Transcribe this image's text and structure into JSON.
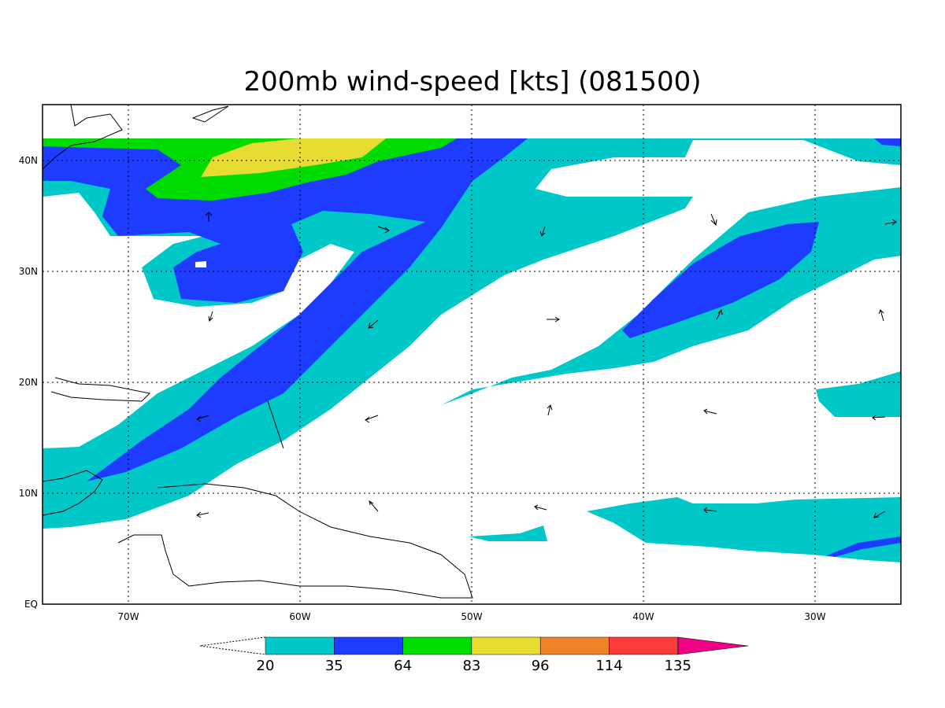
{
  "map": {
    "title": "200mb wind-speed [kts] (081500)",
    "lon_labels": [
      "70W",
      "60W",
      "50W",
      "40W",
      "30W"
    ],
    "lat_labels": [
      "40N",
      "30N",
      "20N",
      "10N",
      "EQ"
    ],
    "extent": {
      "lon_west": -75,
      "lon_east": -25,
      "lat_south": 0,
      "lat_north": 45
    },
    "grid": "dotted, every 10 degrees",
    "variable": "200mb wind speed",
    "units": "kts",
    "time_label": "081500"
  },
  "colorbar": {
    "levels": [
      "20",
      "35",
      "64",
      "83",
      "96",
      "114",
      "135"
    ],
    "colors": [
      "#00c8c8",
      "#1e3cff",
      "#00dc00",
      "#e6dc32",
      "#f08228",
      "#fa3c3c",
      "#f00082"
    ],
    "below_min": "white (dashed triangle)",
    "above_max": "#f00082 (triangle)"
  },
  "features": {
    "jet_band_core_max": "96",
    "coastline": "Caribbean, Central America, northern South America, US east coast",
    "vectors": "wind direction arrows"
  }
}
